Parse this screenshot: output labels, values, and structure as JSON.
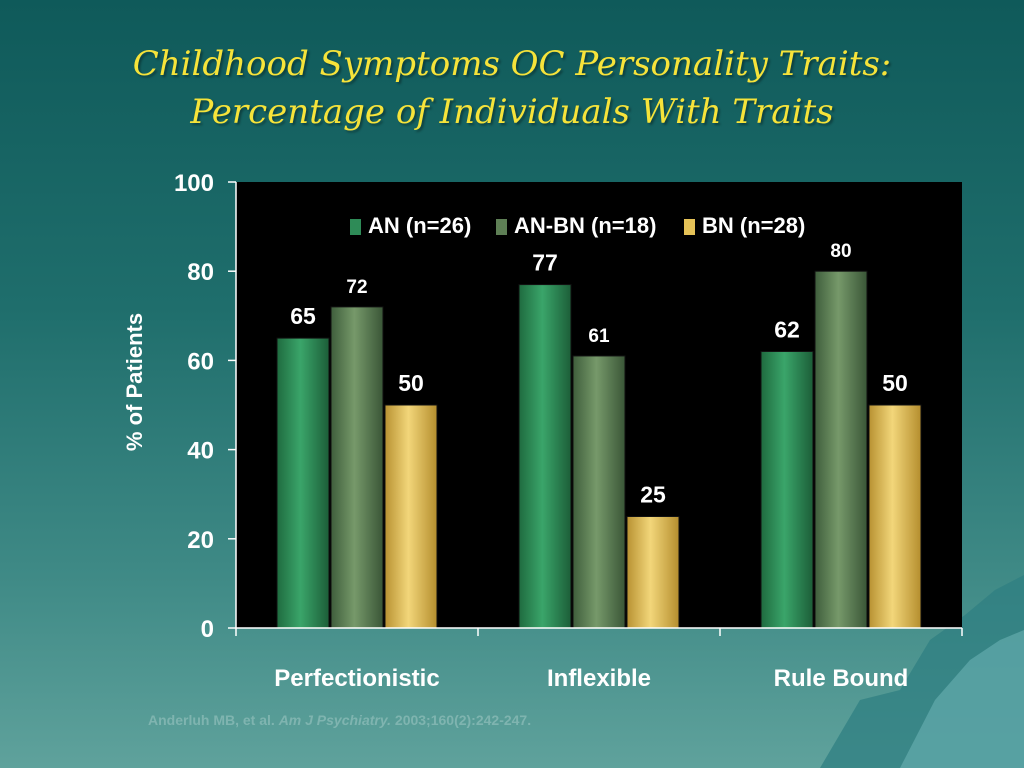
{
  "title_line1": "Childhood Symptoms OC Personality Traits:",
  "title_line2": "Percentage of Individuals With Traits",
  "citation": {
    "authors": "Anderluh MB, et al.",
    "journal": "Am J Psychiatry.",
    "ref": "2003;160(2):242-247."
  },
  "colors": {
    "AN": "#2e8b57",
    "AN-BN": "#5e7f55",
    "BN": "#e5c257",
    "plot_bg": "#000000",
    "text": "#ffffff"
  },
  "chart_data": {
    "type": "bar",
    "title": "Childhood Symptoms OC Personality Traits: Percentage of Individuals With Traits",
    "categories": [
      "Perfectionistic",
      "Inflexible",
      "Rule Bound"
    ],
    "series": [
      {
        "name": "AN (n=26)",
        "values": [
          65,
          77,
          62
        ]
      },
      {
        "name": "AN-BN (n=18)",
        "values": [
          72,
          61,
          80
        ]
      },
      {
        "name": "BN (n=28)",
        "values": [
          50,
          25,
          50
        ]
      }
    ],
    "xlabel": "",
    "ylabel": "% of Patients",
    "ylim": [
      0,
      100
    ],
    "yticks": [
      0,
      20,
      40,
      60,
      80,
      100
    ],
    "grid": false,
    "legend": "top-center"
  }
}
